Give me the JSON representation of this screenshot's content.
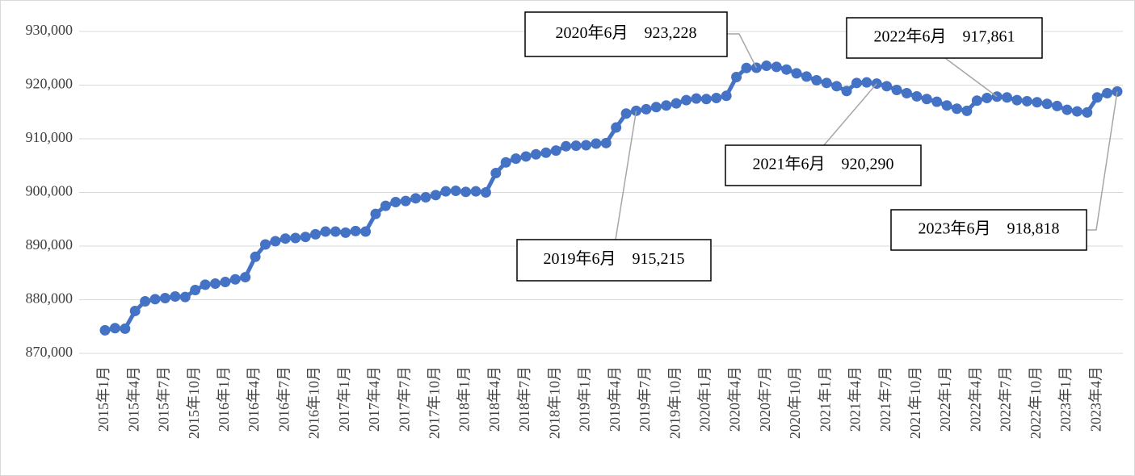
{
  "chart_data": {
    "type": "line",
    "categories": [
      "2015年1月",
      null,
      null,
      "2015年4月",
      null,
      null,
      "2015年7月",
      null,
      null,
      "2015年10月",
      null,
      null,
      "2016年1月",
      null,
      null,
      "2016年4月",
      null,
      null,
      "2016年7月",
      null,
      null,
      "2016年10月",
      null,
      null,
      "2017年1月",
      null,
      null,
      "2017年4月",
      null,
      null,
      "2017年7月",
      null,
      null,
      "2017年10月",
      null,
      null,
      "2018年1月",
      null,
      null,
      "2018年4月",
      null,
      null,
      "2018年7月",
      null,
      null,
      "2018年10月",
      null,
      null,
      "2019年1月",
      null,
      null,
      "2019年4月",
      null,
      null,
      "2019年7月",
      null,
      null,
      "2019年10月",
      null,
      null,
      "2020年1月",
      null,
      null,
      "2020年4月",
      null,
      null,
      "2020年7月",
      null,
      null,
      "2020年10月",
      null,
      null,
      "2021年1月",
      null,
      null,
      "2021年4月",
      null,
      null,
      "2021年7月",
      null,
      null,
      "2021年10月",
      null,
      null,
      "2022年1月",
      null,
      null,
      "2022年4月",
      null,
      null,
      "2022年7月",
      null,
      null,
      "2022年10月",
      null,
      null,
      "2023年1月",
      null,
      null,
      "2023年4月",
      null,
      null
    ],
    "series": [
      {
        "color": "#4472c4",
        "values": [
          874300,
          874700,
          874600,
          877900,
          879700,
          880100,
          880300,
          880600,
          880500,
          881800,
          882800,
          883000,
          883300,
          883800,
          884200,
          888000,
          890300,
          890900,
          891400,
          891500,
          891700,
          892200,
          892700,
          892700,
          892500,
          892800,
          892700,
          896000,
          897500,
          898200,
          898400,
          898900,
          899100,
          899500,
          900200,
          900300,
          900100,
          900200,
          900000,
          903600,
          905600,
          906300,
          906700,
          907100,
          907400,
          907800,
          908600,
          908700,
          908800,
          909100,
          909200,
          912100,
          914700,
          915215,
          915500,
          915900,
          916200,
          916600,
          917200,
          917500,
          917400,
          917600,
          918000,
          921500,
          923200,
          923228,
          923600,
          923400,
          922900,
          922200,
          921600,
          920900,
          920400,
          919800,
          918900,
          920400,
          920500,
          920290,
          919800,
          919100,
          918500,
          917900,
          917400,
          916900,
          916200,
          915600,
          915200,
          917100,
          917600,
          917861,
          917700,
          917200,
          917000,
          916800,
          916500,
          916100,
          915400,
          915100,
          914900,
          917700,
          918500,
          918818
        ],
        "value_labels": [
          null,
          null,
          null,
          null,
          null,
          null,
          null,
          null,
          null,
          null,
          null,
          null,
          null,
          null,
          null,
          null,
          null,
          null,
          null,
          null,
          null,
          null,
          null,
          null,
          null,
          null,
          null,
          null,
          null,
          null,
          null,
          null,
          null,
          null,
          null,
          null,
          null,
          null,
          null,
          null,
          null,
          null,
          null,
          null,
          null,
          null,
          null,
          null,
          null,
          null,
          null,
          null,
          null,
          "2019年6月　915,215",
          null,
          null,
          null,
          null,
          null,
          null,
          null,
          null,
          null,
          null,
          null,
          "2020年6月　923,228",
          null,
          null,
          null,
          null,
          null,
          null,
          null,
          null,
          null,
          null,
          null,
          "2021年6月　920,290",
          null,
          null,
          null,
          null,
          null,
          null,
          null,
          null,
          null,
          null,
          null,
          "2022年6月　917,861",
          null,
          null,
          null,
          null,
          null,
          null,
          null,
          null,
          null,
          null,
          null,
          "2023年6月　918,818"
        ]
      }
    ],
    "ylim": [
      870000,
      930000
    ],
    "yticks": [
      {
        "value": 870000,
        "label": "870,000"
      },
      {
        "value": 880000,
        "label": "880,000"
      },
      {
        "value": 890000,
        "label": "890,000"
      },
      {
        "value": 900000,
        "label": "900,000"
      },
      {
        "value": 910000,
        "label": "910,000"
      },
      {
        "value": 920000,
        "label": "920,000"
      },
      {
        "value": 930000,
        "label": "930,000"
      }
    ],
    "grid": true
  }
}
